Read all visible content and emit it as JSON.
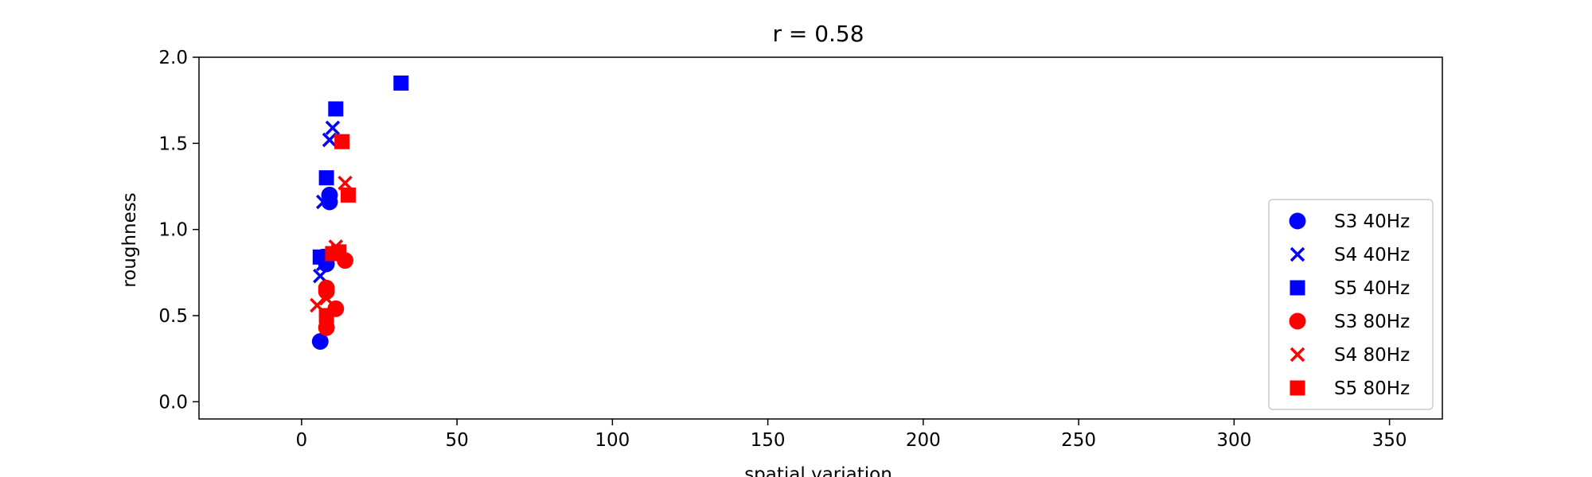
{
  "chart_data": {
    "type": "scatter",
    "title": "r = 0.58",
    "xlabel": "spatial variation",
    "ylabel": "roughness",
    "xlim": [
      -33,
      367
    ],
    "ylim": [
      -0.1,
      2.0
    ],
    "xticks": [
      0,
      50,
      100,
      150,
      200,
      250,
      300,
      350
    ],
    "yticks": [
      0.0,
      0.5,
      1.0,
      1.5,
      2.0
    ],
    "ytick_labels": [
      "0.0",
      "0.5",
      "1.0",
      "1.5",
      "2.0"
    ],
    "grid": false,
    "legend_position": "lower-right",
    "series": [
      {
        "name": "S3 40Hz",
        "marker": "circle",
        "color": "#0000ff",
        "points": [
          [
            6,
            0.35
          ],
          [
            8,
            0.8
          ],
          [
            9,
            1.2
          ],
          [
            9,
            1.16
          ],
          [
            7,
            0.84
          ]
        ]
      },
      {
        "name": "S4 40Hz",
        "marker": "x",
        "color": "#0000ff",
        "points": [
          [
            6,
            0.73
          ],
          [
            7,
            1.16
          ],
          [
            9,
            1.52
          ],
          [
            10,
            1.59
          ],
          [
            7,
            0.8
          ]
        ]
      },
      {
        "name": "S5 40Hz",
        "marker": "square",
        "color": "#0000ff",
        "points": [
          [
            6,
            0.84
          ],
          [
            8,
            1.3
          ],
          [
            11,
            1.7
          ],
          [
            32,
            1.85
          ]
        ]
      },
      {
        "name": "S3 80Hz",
        "marker": "circle",
        "color": "#ff0000",
        "points": [
          [
            8,
            0.43
          ],
          [
            11,
            0.54
          ],
          [
            8,
            0.66
          ],
          [
            8,
            0.64
          ],
          [
            14,
            0.82
          ]
        ]
      },
      {
        "name": "S4 80Hz",
        "marker": "x",
        "color": "#ff0000",
        "points": [
          [
            5,
            0.56
          ],
          [
            8,
            0.6
          ],
          [
            11,
            0.9
          ],
          [
            14,
            1.27
          ],
          [
            11,
            0.86
          ]
        ]
      },
      {
        "name": "S5 80Hz",
        "marker": "square",
        "color": "#ff0000",
        "points": [
          [
            8,
            0.5
          ],
          [
            10,
            0.86
          ],
          [
            12,
            0.87
          ],
          [
            13,
            1.51
          ],
          [
            15,
            1.2
          ]
        ]
      }
    ]
  }
}
